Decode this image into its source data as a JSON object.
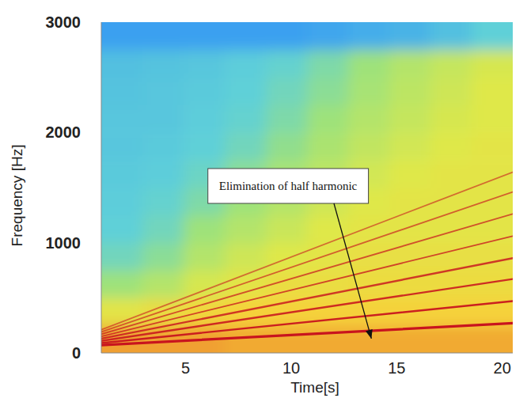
{
  "chart_data": {
    "type": "spectrogram",
    "xlabel": "Time[s]",
    "ylabel": "Frequency [Hz]",
    "xlim": [
      1,
      20.5
    ],
    "ylim": [
      0,
      3000
    ],
    "xticks": [
      5,
      10,
      15,
      20
    ],
    "yticks": [
      0,
      1000,
      2000,
      3000
    ],
    "grid": false,
    "color": "#c8141e",
    "annotation": {
      "text": "Elimination of half harmonic",
      "x": 13.8,
      "y": 130
    },
    "series": [
      {
        "x": [
          1,
          20.5
        ],
        "values": [
          70,
          270
        ]
      },
      {
        "x": [
          1,
          20.5
        ],
        "values": [
          90,
          470
        ]
      },
      {
        "x": [
          1,
          20.5
        ],
        "values": [
          110,
          670
        ]
      },
      {
        "x": [
          1,
          20.5
        ],
        "values": [
          130,
          860
        ]
      },
      {
        "x": [
          1,
          20.5
        ],
        "values": [
          150,
          1060
        ]
      },
      {
        "x": [
          1,
          20.5
        ],
        "values": [
          170,
          1260
        ]
      },
      {
        "x": [
          1,
          20.5
        ],
        "values": [
          190,
          1460
        ]
      },
      {
        "x": [
          1,
          20.5
        ],
        "values": [
          210,
          1640
        ]
      }
    ],
    "cell_x_edges": [
      1,
      2.95,
      4.9,
      6.85,
      8.8,
      10.75,
      12.7,
      14.65,
      16.6,
      18.55,
      20.5
    ],
    "cell_y_edges": [
      0,
      250,
      500,
      750,
      1000,
      1250,
      1500,
      1750,
      2000,
      2250,
      2500,
      2750,
      3000
    ],
    "cells": [
      [
        0.9,
        0.9,
        0.9,
        0.88,
        0.88,
        0.88,
        0.88,
        0.88,
        0.88,
        0.88
      ],
      [
        0.72,
        0.75,
        0.78,
        0.8,
        0.8,
        0.8,
        0.8,
        0.8,
        0.8,
        0.8
      ],
      [
        0.55,
        0.6,
        0.68,
        0.72,
        0.75,
        0.75,
        0.76,
        0.76,
        0.76,
        0.76
      ],
      [
        0.48,
        0.52,
        0.6,
        0.66,
        0.7,
        0.72,
        0.74,
        0.74,
        0.74,
        0.74
      ],
      [
        0.45,
        0.48,
        0.55,
        0.6,
        0.65,
        0.7,
        0.72,
        0.72,
        0.72,
        0.72
      ],
      [
        0.44,
        0.46,
        0.5,
        0.55,
        0.6,
        0.66,
        0.7,
        0.72,
        0.72,
        0.72
      ],
      [
        0.43,
        0.44,
        0.47,
        0.52,
        0.57,
        0.62,
        0.67,
        0.7,
        0.72,
        0.72
      ],
      [
        0.42,
        0.43,
        0.45,
        0.48,
        0.53,
        0.58,
        0.63,
        0.67,
        0.7,
        0.72
      ],
      [
        0.42,
        0.42,
        0.44,
        0.46,
        0.5,
        0.55,
        0.6,
        0.64,
        0.68,
        0.7
      ],
      [
        0.41,
        0.42,
        0.43,
        0.45,
        0.48,
        0.52,
        0.57,
        0.62,
        0.66,
        0.7
      ],
      [
        0.4,
        0.41,
        0.42,
        0.44,
        0.46,
        0.5,
        0.55,
        0.6,
        0.64,
        0.68
      ],
      [
        0.3,
        0.3,
        0.3,
        0.3,
        0.3,
        0.32,
        0.34,
        0.36,
        0.4,
        0.45
      ]
    ]
  }
}
